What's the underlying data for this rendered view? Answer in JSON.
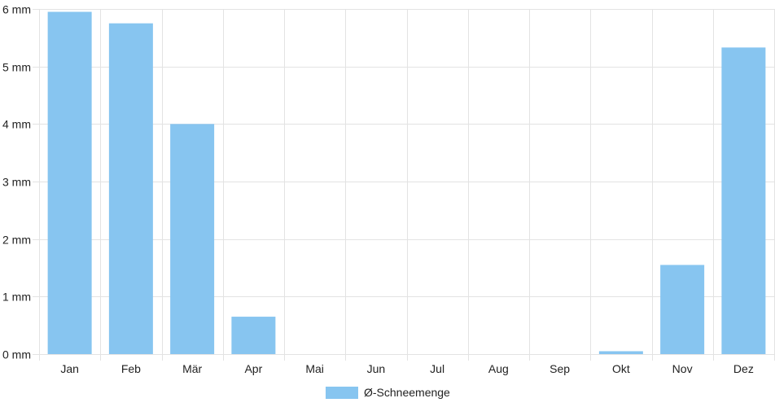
{
  "chart_data": {
    "type": "bar",
    "categories": [
      "Jan",
      "Feb",
      "Mär",
      "Apr",
      "Mai",
      "Jun",
      "Jul",
      "Aug",
      "Sep",
      "Okt",
      "Nov",
      "Dez"
    ],
    "series": [
      {
        "name": "Ø-Schneemenge",
        "values": [
          5.95,
          5.75,
          4.0,
          0.65,
          0,
          0,
          0,
          0,
          0,
          0.05,
          1.55,
          5.33
        ],
        "color": "#87c5f0"
      }
    ],
    "y_unit": "mm",
    "y_ticks": [
      "0 mm",
      "1 mm",
      "2 mm",
      "3 mm",
      "4 mm",
      "5 mm",
      "6 mm"
    ],
    "ylim": [
      0,
      6
    ],
    "grid": true,
    "grid_color": "#e3e3e3",
    "legend_position": "bottom-center"
  }
}
